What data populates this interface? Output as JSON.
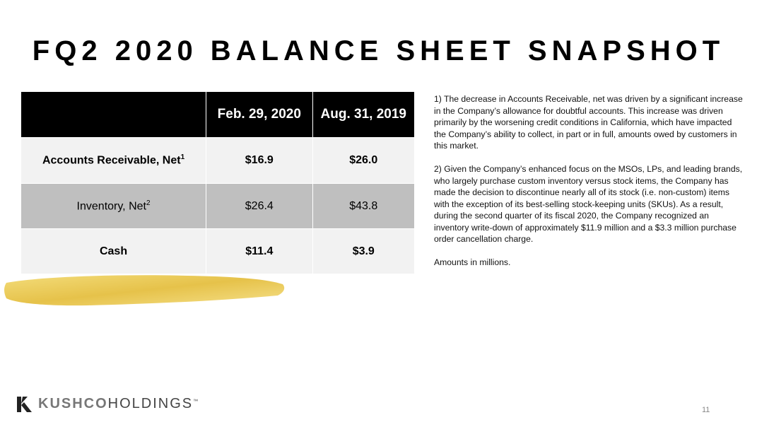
{
  "title": "FQ2 2020 BALANCE SHEET SNAPSHOT",
  "table": {
    "headers": [
      "",
      "Feb. 29,  2020",
      "Aug. 31, 2019"
    ],
    "rows": [
      {
        "label": "Accounts Receivable, Net",
        "footnote": "1",
        "values": [
          "$16.9",
          "$26.0"
        ]
      },
      {
        "label": "Inventory, Net",
        "footnote": "2",
        "values": [
          "$26.4",
          "$43.8"
        ]
      },
      {
        "label": "Cash",
        "footnote": "",
        "values": [
          "$11.4",
          "$3.9"
        ]
      }
    ]
  },
  "notes": [
    "1) The decrease in Accounts Receivable, net was driven by a significant increase in the Company’s allowance for doubtful accounts. This increase was driven primarily by the worsening credit conditions in California, which have impacted the Company’s ability to collect, in part or in full, amounts owed by customers in this market.",
    "2) Given the Company’s enhanced focus on the MSOs, LPs, and leading brands, who largely purchase custom inventory versus stock items, the Company has made the decision to discontinue nearly all of its stock (i.e. non-custom) items with the exception of its best-selling stock-keeping units (SKUs). As a result, during the second quarter of its fiscal 2020, the Company recognized an inventory write-down of approximately $11.9 million and a $3.3 million purchase order cancellation charge.",
    "Amounts in millions."
  ],
  "logo": {
    "part1": "KUSHCO",
    "part2": "HOLDINGS",
    "tm": "™"
  },
  "page_number": "11",
  "colors": {
    "header_bg": "#000000",
    "row_light": "#f2f2f2",
    "row_dark": "#bfbfbf",
    "gold": "#e8c84a"
  }
}
